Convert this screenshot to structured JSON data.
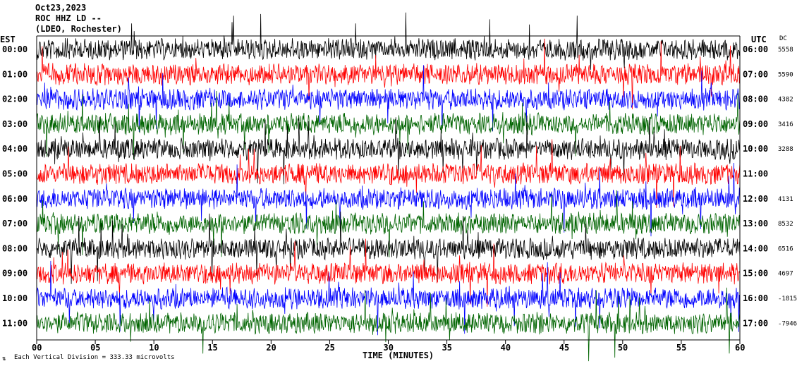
{
  "header": {
    "date": "Oct23,2023",
    "station": "ROC HHZ LD --",
    "location": "(LDEO, Rochester)"
  },
  "left_axis_title": "EST",
  "right_axis_title": "UTC",
  "dc_title": "DC",
  "footer": {
    "scale_note": "Each Vertical Division = 333.33 microvolts",
    "x_title": "TIME (MINUTES)"
  },
  "colors": {
    "trace_cycle": [
      "#000000",
      "#ff0000",
      "#0000ff",
      "#006400"
    ],
    "frame": "#000000",
    "background": "#ffffff"
  },
  "chart_data": {
    "type": "line",
    "title": "",
    "xlabel": "TIME (MINUTES)",
    "ylabel": "",
    "xlim": [
      0,
      60
    ],
    "x_ticks": [
      0,
      5,
      10,
      15,
      20,
      25,
      30,
      35,
      40,
      45,
      50,
      55,
      60
    ],
    "x_tick_labels": [
      "00",
      "05",
      "10",
      "15",
      "20",
      "25",
      "30",
      "35",
      "40",
      "45",
      "50",
      "55",
      "60"
    ],
    "rows": [
      {
        "est": "00:00",
        "utc": "06:00",
        "dc": "5558",
        "color": "#000000"
      },
      {
        "est": "01:00",
        "utc": "07:00",
        "dc": "5590",
        "color": "#ff0000"
      },
      {
        "est": "02:00",
        "utc": "08:00",
        "dc": "4382",
        "color": "#0000ff"
      },
      {
        "est": "03:00",
        "utc": "09:00",
        "dc": "3416",
        "color": "#006400"
      },
      {
        "est": "04:00",
        "utc": "10:00",
        "dc": "3288",
        "color": "#000000"
      },
      {
        "est": "05:00",
        "utc": "11:00",
        "dc": "",
        "color": "#ff0000"
      },
      {
        "est": "06:00",
        "utc": "12:00",
        "dc": "4131",
        "color": "#0000ff"
      },
      {
        "est": "07:00",
        "utc": "13:00",
        "dc": "8532",
        "color": "#006400"
      },
      {
        "est": "08:00",
        "utc": "14:00",
        "dc": "6516",
        "color": "#000000"
      },
      {
        "est": "09:00",
        "utc": "15:00",
        "dc": "4697",
        "color": "#ff0000"
      },
      {
        "est": "10:00",
        "utc": "16:00",
        "dc": "-1815",
        "color": "#0000ff"
      },
      {
        "est": "11:00",
        "utc": "17:00",
        "dc": "-7946",
        "color": "#006400"
      }
    ],
    "legend": "none",
    "grid": false
  }
}
